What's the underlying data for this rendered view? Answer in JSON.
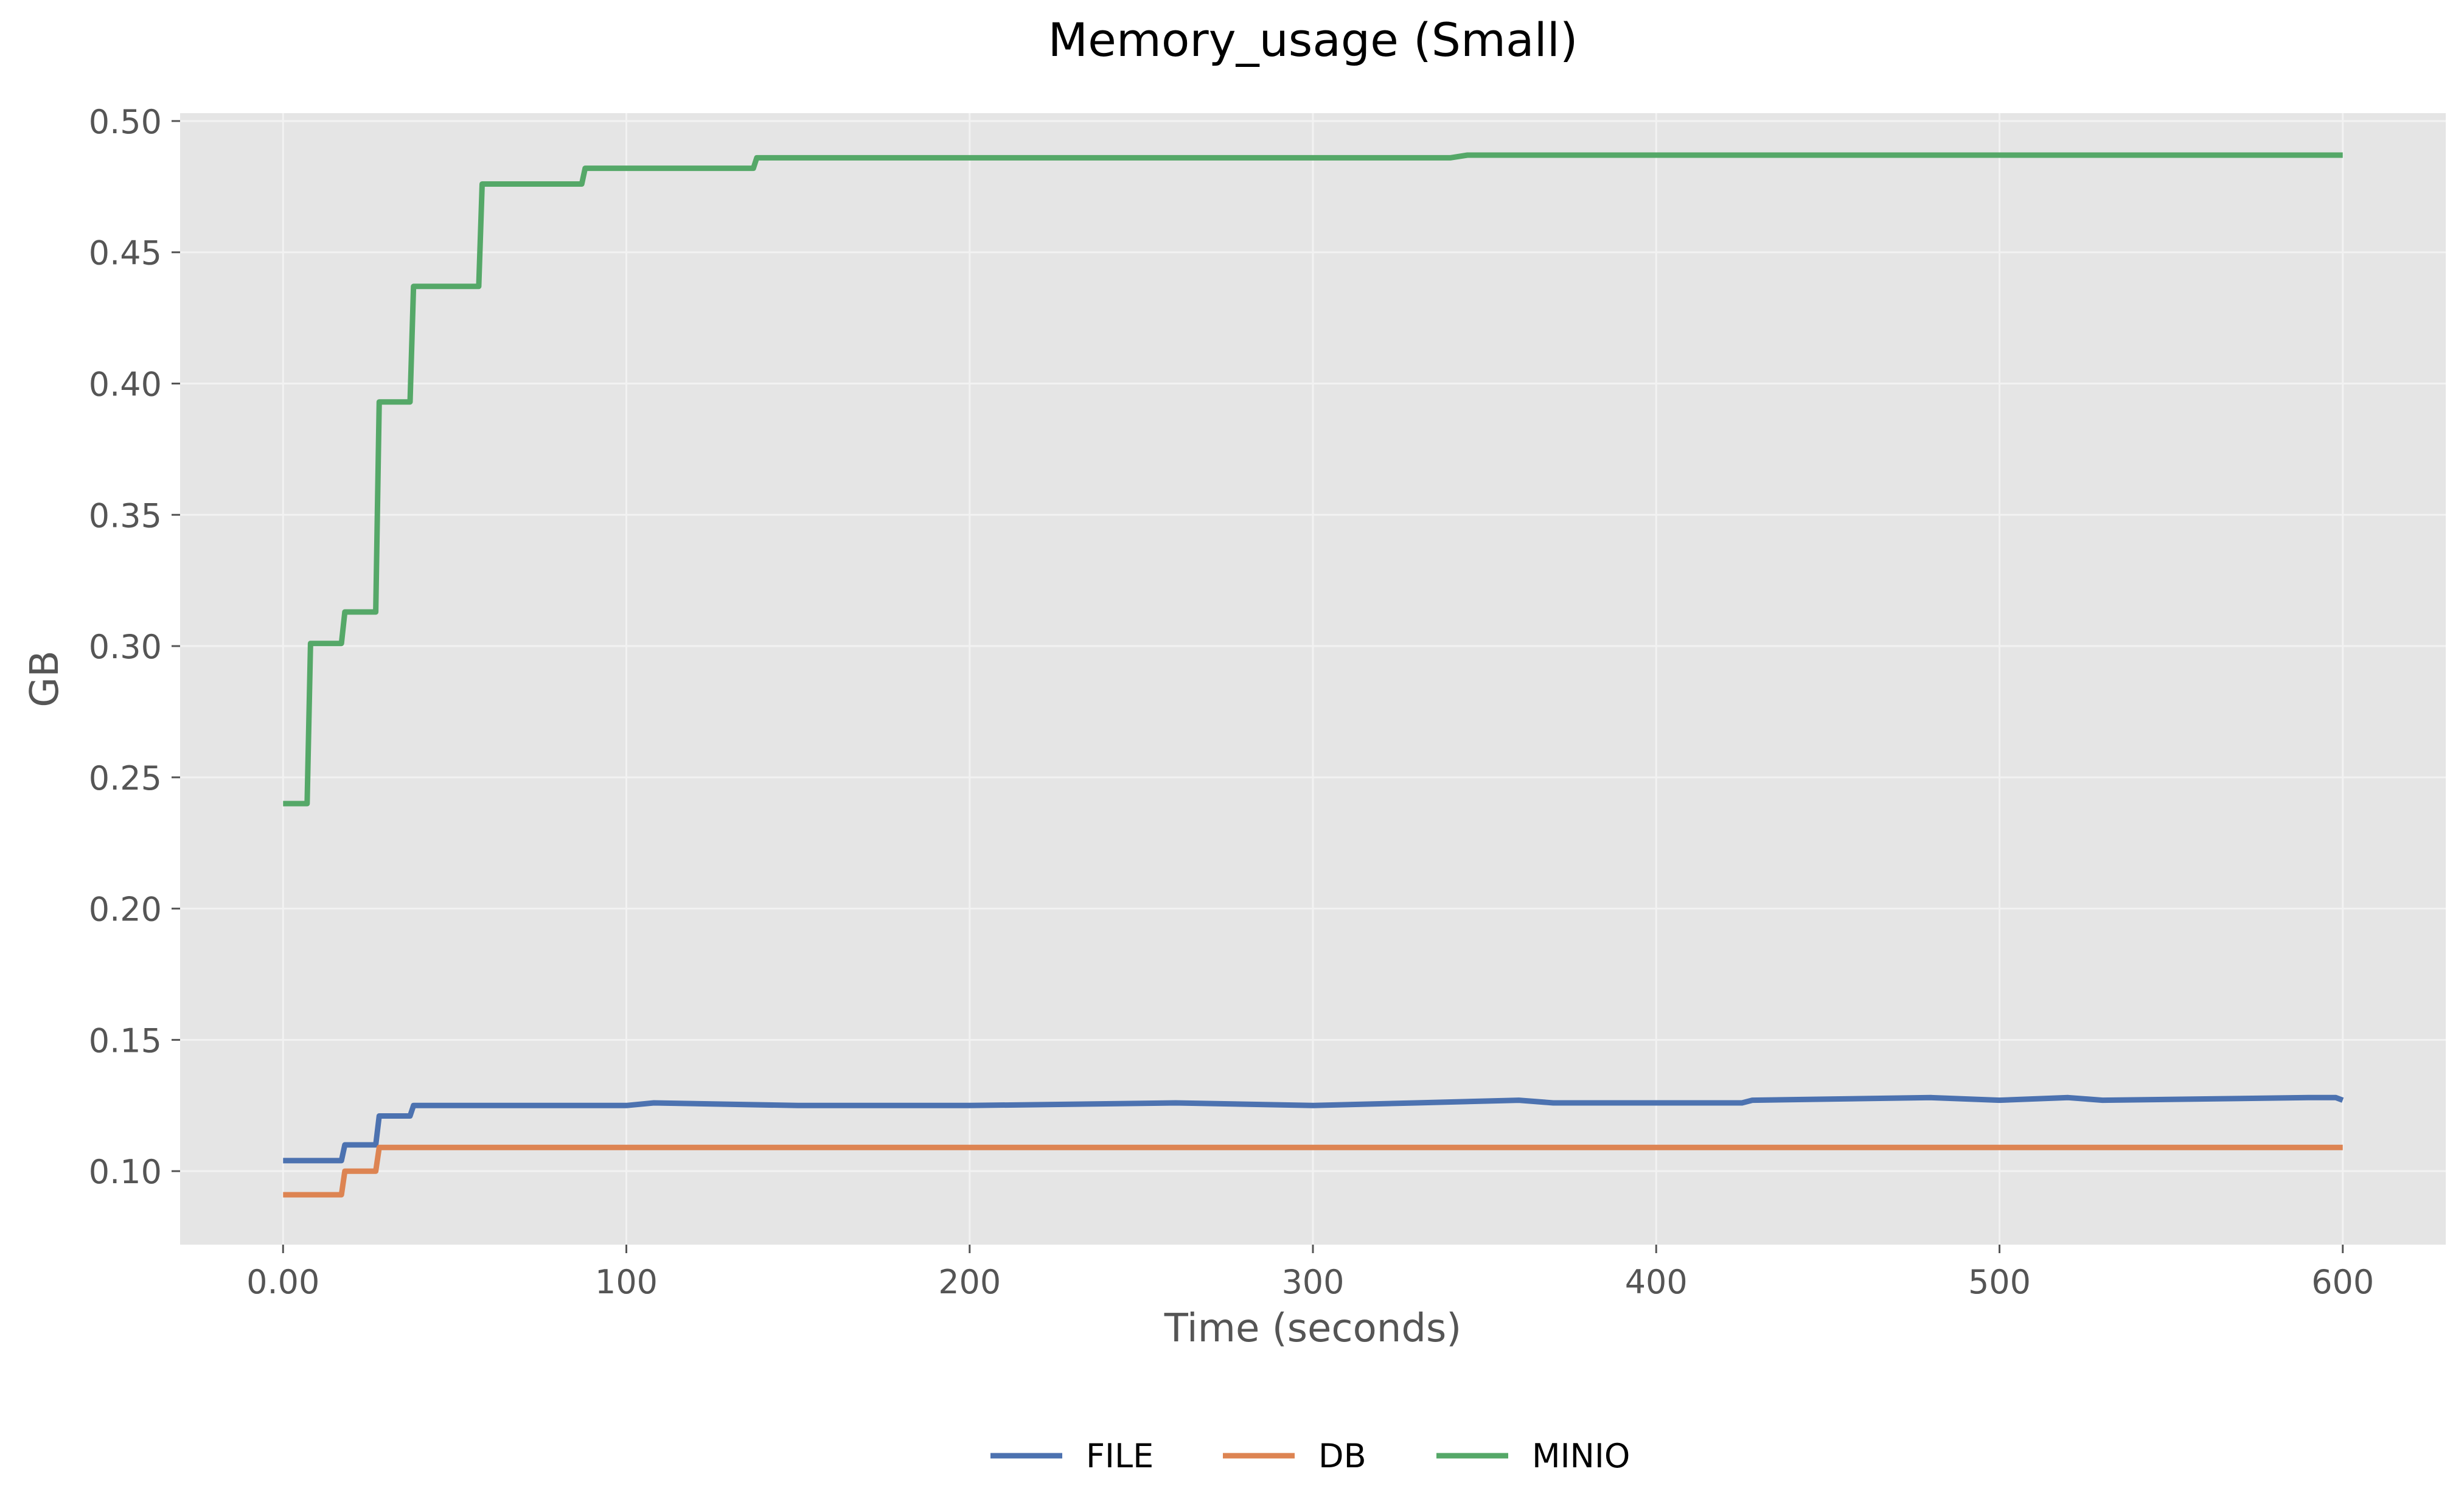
{
  "chart_data": {
    "type": "line",
    "title": "Memory_usage (Small)",
    "xlabel": "Time (seconds)",
    "ylabel": "GB",
    "xlim": [
      -30,
      630
    ],
    "ylim": [
      0.072,
      0.503
    ],
    "xticks": [
      0,
      100,
      200,
      300,
      400,
      500,
      600
    ],
    "xtick_labels": [
      "0.00",
      "100",
      "200",
      "300",
      "400",
      "500",
      "600"
    ],
    "yticks": [
      0.1,
      0.15,
      0.2,
      0.25,
      0.3,
      0.35,
      0.4,
      0.45,
      0.5
    ],
    "ytick_labels": [
      "0.10",
      "0.15",
      "0.20",
      "0.25",
      "0.30",
      "0.35",
      "0.40",
      "0.45",
      "0.50"
    ],
    "grid": true,
    "legend_position": "bottom-center",
    "series": [
      {
        "name": "FILE",
        "color": "#4c72b0",
        "points": [
          [
            0,
            0.104
          ],
          [
            17,
            0.104
          ],
          [
            18,
            0.11
          ],
          [
            27,
            0.11
          ],
          [
            28,
            0.121
          ],
          [
            37,
            0.121
          ],
          [
            38,
            0.125
          ],
          [
            100,
            0.125
          ],
          [
            108,
            0.126
          ],
          [
            150,
            0.125
          ],
          [
            200,
            0.125
          ],
          [
            260,
            0.126
          ],
          [
            300,
            0.125
          ],
          [
            330,
            0.126
          ],
          [
            360,
            0.127
          ],
          [
            370,
            0.126
          ],
          [
            400,
            0.126
          ],
          [
            425,
            0.126
          ],
          [
            428,
            0.127
          ],
          [
            480,
            0.128
          ],
          [
            500,
            0.127
          ],
          [
            520,
            0.128
          ],
          [
            530,
            0.127
          ],
          [
            590,
            0.128
          ],
          [
            598,
            0.128
          ],
          [
            600,
            0.127
          ]
        ]
      },
      {
        "name": "DB",
        "color": "#dd8452",
        "points": [
          [
            0,
            0.091
          ],
          [
            17,
            0.091
          ],
          [
            18,
            0.1
          ],
          [
            27,
            0.1
          ],
          [
            28,
            0.109
          ],
          [
            600,
            0.109
          ]
        ]
      },
      {
        "name": "MINIO",
        "color": "#55a868",
        "points": [
          [
            0,
            0.24
          ],
          [
            7,
            0.24
          ],
          [
            8,
            0.301
          ],
          [
            17,
            0.301
          ],
          [
            18,
            0.313
          ],
          [
            27,
            0.313
          ],
          [
            28,
            0.393
          ],
          [
            37,
            0.393
          ],
          [
            38,
            0.437
          ],
          [
            57,
            0.437
          ],
          [
            58,
            0.476
          ],
          [
            87,
            0.476
          ],
          [
            88,
            0.482
          ],
          [
            137,
            0.482
          ],
          [
            138,
            0.486
          ],
          [
            340,
            0.486
          ],
          [
            345,
            0.487
          ],
          [
            600,
            0.487
          ]
        ]
      }
    ]
  }
}
